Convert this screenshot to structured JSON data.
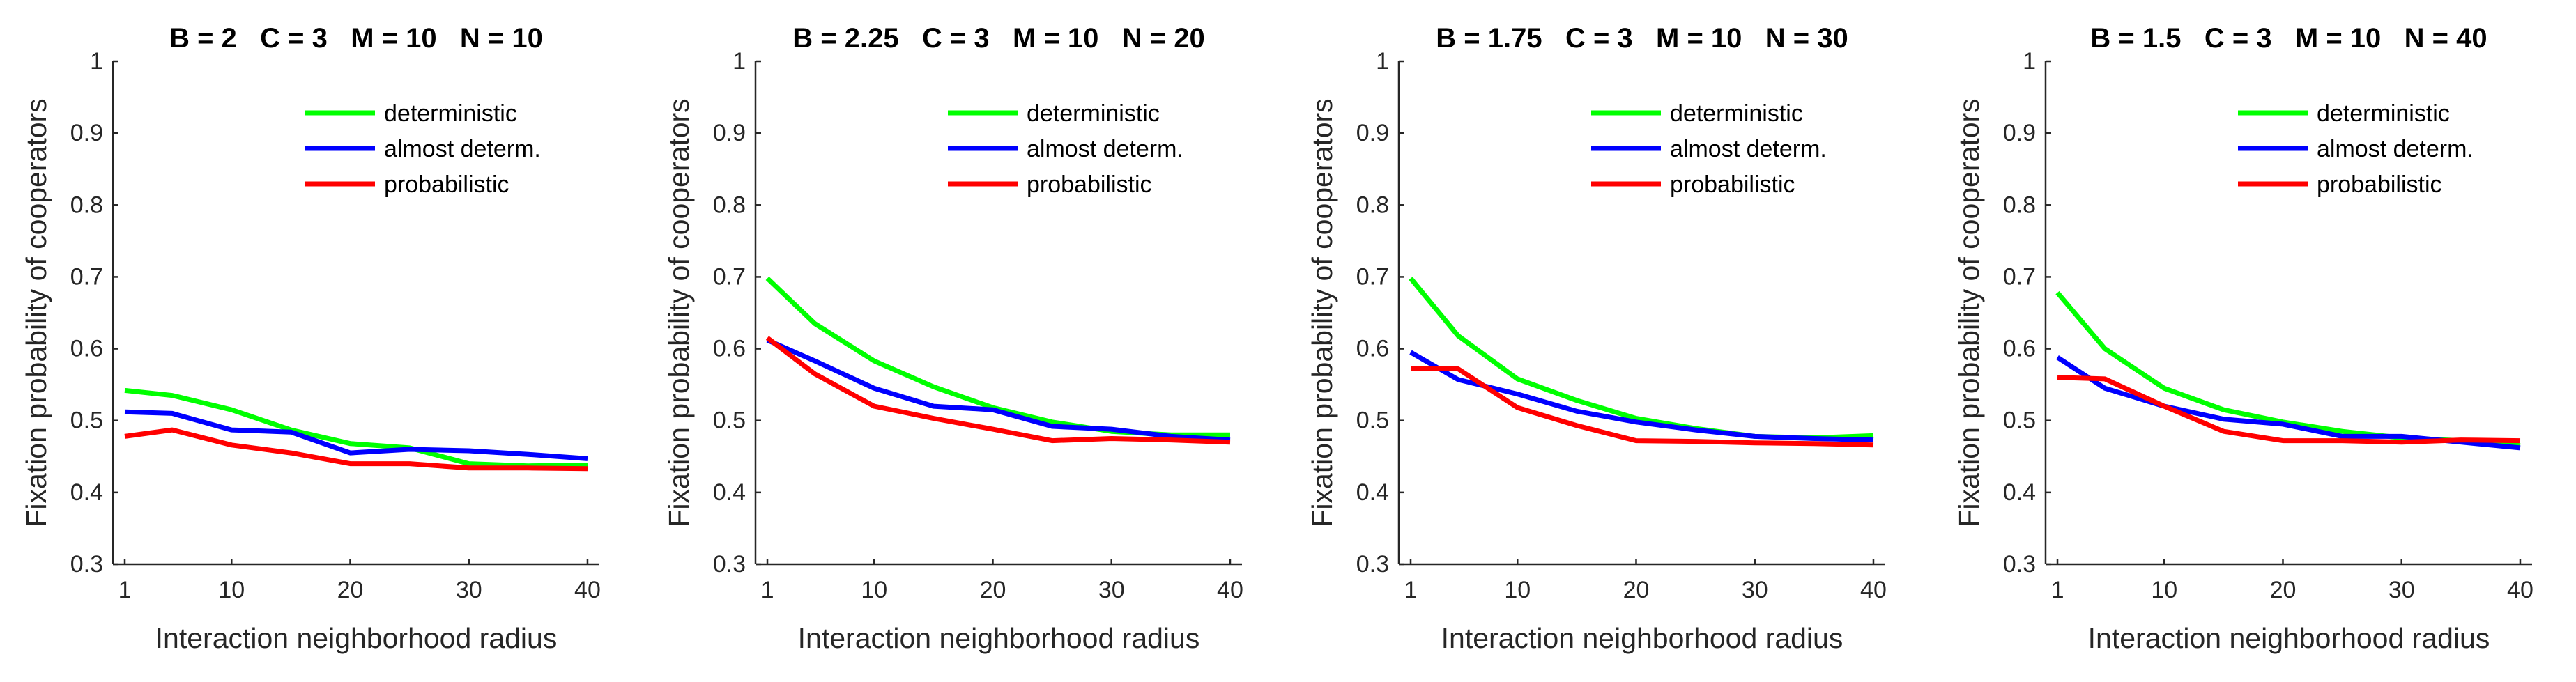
{
  "chart_data": [
    {
      "type": "line",
      "title": "B = 2   C = 3   M = 10   N = 10",
      "xlabel": "Interaction neighborhood radius",
      "ylabel": "Fixation probability of cooperators",
      "xlim": [
        0,
        41
      ],
      "ylim": [
        0.3,
        1
      ],
      "xticks": [
        1,
        10,
        20,
        30,
        40
      ],
      "yticks": [
        0.3,
        0.4,
        0.5,
        0.6,
        0.7,
        0.8,
        0.9,
        1
      ],
      "legend_position": "top-right",
      "x": [
        1,
        5,
        10,
        15,
        20,
        25,
        30,
        35,
        40
      ],
      "series": [
        {
          "name": "deterministic",
          "color": "#00ff00",
          "values": [
            0.542,
            0.535,
            0.515,
            0.487,
            0.468,
            0.462,
            0.44,
            0.437,
            0.438
          ]
        },
        {
          "name": "almost determ.",
          "color": "#0000ff",
          "values": [
            0.512,
            0.51,
            0.487,
            0.484,
            0.455,
            0.46,
            0.458,
            0.453,
            0.447
          ]
        },
        {
          "name": "probabilistic",
          "color": "#ff0000",
          "values": [
            0.478,
            0.487,
            0.466,
            0.455,
            0.44,
            0.44,
            0.434,
            0.434,
            0.433
          ]
        }
      ]
    },
    {
      "type": "line",
      "title": "B = 2.25   C = 3   M = 10   N = 20",
      "xlabel": "Interaction neighborhood radius",
      "ylabel": "Fixation probability of cooperators",
      "xlim": [
        0,
        41
      ],
      "ylim": [
        0.3,
        1
      ],
      "xticks": [
        1,
        10,
        20,
        30,
        40
      ],
      "yticks": [
        0.3,
        0.4,
        0.5,
        0.6,
        0.7,
        0.8,
        0.9,
        1
      ],
      "legend_position": "top-right",
      "x": [
        1,
        5,
        10,
        15,
        20,
        25,
        30,
        35,
        40
      ],
      "series": [
        {
          "name": "deterministic",
          "color": "#00ff00",
          "values": [
            0.698,
            0.635,
            0.583,
            0.547,
            0.518,
            0.498,
            0.485,
            0.48,
            0.48
          ]
        },
        {
          "name": "almost determ.",
          "color": "#0000ff",
          "values": [
            0.612,
            0.583,
            0.545,
            0.52,
            0.515,
            0.492,
            0.488,
            0.478,
            0.473
          ]
        },
        {
          "name": "probabilistic",
          "color": "#ff0000",
          "values": [
            0.615,
            0.565,
            0.52,
            0.503,
            0.488,
            0.472,
            0.475,
            0.473,
            0.47
          ]
        }
      ]
    },
    {
      "type": "line",
      "title": "B = 1.75   C = 3   M = 10   N = 30",
      "xlabel": "Interaction neighborhood radius",
      "ylabel": "Fixation probability of cooperators",
      "xlim": [
        0,
        41
      ],
      "ylim": [
        0.3,
        1
      ],
      "xticks": [
        1,
        10,
        20,
        30,
        40
      ],
      "yticks": [
        0.3,
        0.4,
        0.5,
        0.6,
        0.7,
        0.8,
        0.9,
        1
      ],
      "legend_position": "top-right",
      "x": [
        1,
        5,
        10,
        15,
        20,
        25,
        30,
        35,
        40
      ],
      "series": [
        {
          "name": "deterministic",
          "color": "#00ff00",
          "values": [
            0.698,
            0.618,
            0.558,
            0.528,
            0.503,
            0.489,
            0.478,
            0.476,
            0.479
          ]
        },
        {
          "name": "almost determ.",
          "color": "#0000ff",
          "values": [
            0.595,
            0.557,
            0.537,
            0.513,
            0.498,
            0.487,
            0.478,
            0.475,
            0.473
          ]
        },
        {
          "name": "probabilistic",
          "color": "#ff0000",
          "values": [
            0.572,
            0.572,
            0.518,
            0.493,
            0.472,
            0.471,
            0.469,
            0.468,
            0.466
          ]
        }
      ]
    },
    {
      "type": "line",
      "title": "B = 1.5   C = 3   M = 10   N = 40",
      "xlabel": "Interaction neighborhood radius",
      "ylabel": "Fixation probability of cooperators",
      "xlim": [
        0,
        41
      ],
      "ylim": [
        0.3,
        1
      ],
      "xticks": [
        1,
        10,
        20,
        30,
        40
      ],
      "yticks": [
        0.3,
        0.4,
        0.5,
        0.6,
        0.7,
        0.8,
        0.9,
        1
      ],
      "legend_position": "top-right",
      "x": [
        1,
        5,
        10,
        15,
        20,
        25,
        30,
        35,
        40
      ],
      "series": [
        {
          "name": "deterministic",
          "color": "#00ff00",
          "values": [
            0.678,
            0.6,
            0.545,
            0.515,
            0.498,
            0.485,
            0.476,
            0.472,
            0.465
          ]
        },
        {
          "name": "almost determ.",
          "color": "#0000ff",
          "values": [
            0.588,
            0.545,
            0.52,
            0.502,
            0.495,
            0.478,
            0.478,
            0.47,
            0.462
          ]
        },
        {
          "name": "probabilistic",
          "color": "#ff0000",
          "values": [
            0.56,
            0.558,
            0.52,
            0.485,
            0.472,
            0.472,
            0.47,
            0.473,
            0.472
          ]
        }
      ]
    }
  ]
}
